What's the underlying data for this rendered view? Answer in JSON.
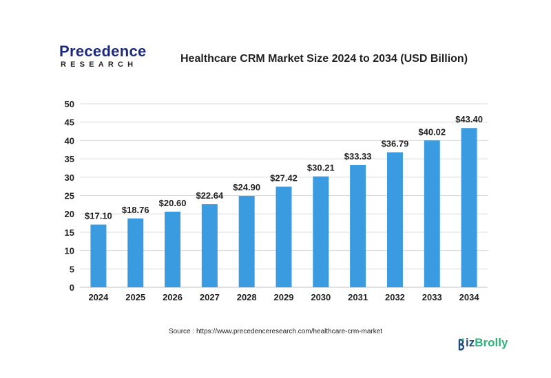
{
  "logo": {
    "top": "Precedence",
    "bottom": "RESEARCH"
  },
  "source": "Source : https://www.precedenceresearch.com/healthcare-crm-market",
  "watermark": {
    "part1": "iz",
    "part2": "Brolly",
    "initial": "B"
  },
  "colors": {
    "bar": "#3b9be0",
    "grid": "#d9d9d9",
    "text": "#222222",
    "logo_blue": "#1d2b7a"
  },
  "chart_data": {
    "type": "bar",
    "title": "Healthcare CRM Market Size 2024 to 2034 (USD Billion)",
    "xlabel": "",
    "ylabel": "",
    "categories": [
      "2024",
      "2025",
      "2026",
      "2027",
      "2028",
      "2029",
      "2030",
      "2031",
      "2032",
      "2033",
      "2034"
    ],
    "values": [
      17.1,
      18.76,
      20.6,
      22.64,
      24.9,
      27.42,
      30.21,
      33.33,
      36.79,
      40.02,
      43.4
    ],
    "value_labels": [
      "$17.10",
      "$18.76",
      "$20.60",
      "$22.64",
      "$24.90",
      "$27.42",
      "$30.21",
      "$33.33",
      "$36.79",
      "$40.02",
      "$43.40"
    ],
    "ylim": [
      0,
      50
    ],
    "yticks": [
      0,
      5,
      10,
      15,
      20,
      25,
      30,
      35,
      40,
      45,
      50
    ],
    "grid": true
  }
}
